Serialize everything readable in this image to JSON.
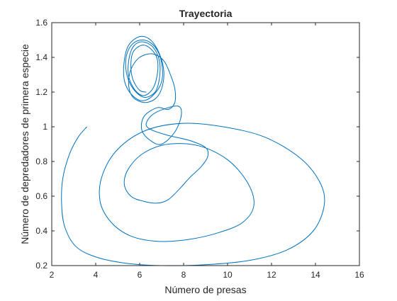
{
  "chart_data": {
    "type": "line",
    "title": "Trayectoria",
    "xlabel": "Número de presas",
    "ylabel": "Número de depredadores de primera especie",
    "xlim": [
      2,
      16
    ],
    "ylim": [
      0.2,
      1.6
    ],
    "xticks": [
      "2",
      "4",
      "6",
      "8",
      "10",
      "12",
      "14",
      "16"
    ],
    "yticks": [
      "0.2",
      "0.4",
      "0.6",
      "0.8",
      "1",
      "1.2",
      "1.4",
      "1.6"
    ],
    "grid": false,
    "box": true,
    "line_color": "#0072BD",
    "series": [
      {
        "points": [
          [
            3.6,
            1.0
          ],
          [
            3.2,
            0.94
          ],
          [
            2.8,
            0.84
          ],
          [
            2.5,
            0.7
          ],
          [
            2.45,
            0.55
          ],
          [
            2.6,
            0.42
          ],
          [
            3.1,
            0.31
          ],
          [
            4.0,
            0.25
          ],
          [
            5.3,
            0.215
          ],
          [
            7.0,
            0.2
          ],
          [
            9.0,
            0.205
          ],
          [
            11.0,
            0.23
          ],
          [
            12.7,
            0.29
          ],
          [
            13.9,
            0.4
          ],
          [
            14.4,
            0.55
          ],
          [
            14.2,
            0.68
          ],
          [
            13.3,
            0.82
          ],
          [
            11.7,
            0.94
          ],
          [
            9.8,
            1.0
          ],
          [
            8.0,
            1.02
          ],
          [
            6.3,
            0.98
          ],
          [
            5.0,
            0.87
          ],
          [
            4.3,
            0.72
          ],
          [
            4.2,
            0.57
          ],
          [
            4.7,
            0.45
          ],
          [
            5.6,
            0.37
          ],
          [
            6.8,
            0.34
          ],
          [
            8.2,
            0.35
          ],
          [
            9.6,
            0.39
          ],
          [
            10.7,
            0.45
          ],
          [
            11.2,
            0.55
          ],
          [
            10.9,
            0.68
          ],
          [
            10.0,
            0.81
          ],
          [
            8.7,
            0.89
          ],
          [
            7.3,
            0.9
          ],
          [
            6.2,
            0.85
          ],
          [
            5.5,
            0.76
          ],
          [
            5.3,
            0.67
          ],
          [
            5.6,
            0.6
          ],
          [
            6.2,
            0.57
          ],
          [
            6.8,
            0.56
          ],
          [
            7.3,
            0.58
          ],
          [
            7.8,
            0.64
          ],
          [
            8.3,
            0.71
          ],
          [
            8.8,
            0.77
          ],
          [
            9.1,
            0.83
          ],
          [
            9.0,
            0.88
          ],
          [
            8.3,
            0.92
          ],
          [
            7.3,
            0.95
          ],
          [
            6.5,
            0.985
          ],
          [
            6.3,
            1.02
          ],
          [
            6.7,
            1.08
          ],
          [
            7.7,
            1.12
          ],
          [
            7.9,
            1.07
          ],
          [
            7.6,
            0.97
          ],
          [
            7.0,
            0.9
          ],
          [
            6.5,
            0.92
          ],
          [
            6.1,
            0.98
          ],
          [
            6.2,
            1.06
          ],
          [
            6.8,
            1.11
          ],
          [
            7.3,
            1.1
          ],
          [
            7.6,
            1.14
          ],
          [
            7.6,
            1.22
          ],
          [
            7.4,
            1.3
          ],
          [
            7.1,
            1.38
          ],
          [
            6.6,
            1.42
          ],
          [
            6.0,
            1.4
          ],
          [
            5.6,
            1.33
          ],
          [
            5.5,
            1.24
          ],
          [
            5.7,
            1.17
          ],
          [
            6.2,
            1.14
          ],
          [
            6.7,
            1.16
          ],
          [
            7.0,
            1.22
          ],
          [
            7.1,
            1.32
          ],
          [
            6.9,
            1.42
          ],
          [
            6.5,
            1.5
          ],
          [
            6.0,
            1.52
          ],
          [
            5.5,
            1.47
          ],
          [
            5.3,
            1.38
          ],
          [
            5.3,
            1.27
          ],
          [
            5.6,
            1.19
          ],
          [
            6.1,
            1.15
          ],
          [
            6.6,
            1.18
          ],
          [
            7.0,
            1.26
          ],
          [
            7.0,
            1.37
          ],
          [
            6.7,
            1.46
          ],
          [
            6.2,
            1.5
          ],
          [
            5.7,
            1.48
          ],
          [
            5.4,
            1.41
          ],
          [
            5.4,
            1.31
          ],
          [
            5.7,
            1.22
          ],
          [
            6.2,
            1.17
          ],
          [
            6.7,
            1.2
          ],
          [
            6.9,
            1.28
          ],
          [
            6.9,
            1.38
          ],
          [
            6.6,
            1.46
          ],
          [
            6.1,
            1.49
          ],
          [
            5.7,
            1.46
          ],
          [
            5.5,
            1.38
          ],
          [
            5.5,
            1.29
          ],
          [
            5.8,
            1.21
          ],
          [
            6.2,
            1.18
          ],
          [
            6.6,
            1.22
          ],
          [
            6.8,
            1.3
          ],
          [
            6.8,
            1.39
          ],
          [
            6.5,
            1.45
          ],
          [
            6.1,
            1.47
          ],
          [
            5.7,
            1.43
          ],
          [
            5.6,
            1.35
          ],
          [
            5.7,
            1.27
          ],
          [
            6.0,
            1.21
          ],
          [
            6.3,
            1.2
          ]
        ]
      }
    ]
  }
}
